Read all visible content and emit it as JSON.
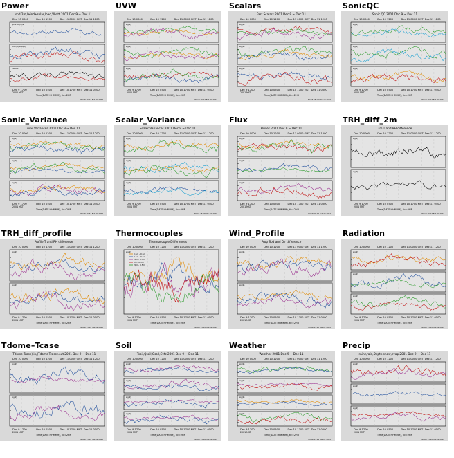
{
  "palette": {
    "background": "#d9d9d9",
    "plot": "#e4e4e4",
    "ink": "#000000",
    "series": [
      "#000000",
      "#1f4e9c",
      "#c01010",
      "#2a9a2a",
      "#e08a00",
      "#9b2f8f",
      "#1aa0d0",
      "#6b3a10"
    ]
  },
  "common": {
    "local_time": "2001 MST",
    "time_axis": "Time(DATE HHMMM), tic=2HR",
    "series_sig": "sig(2)"
  },
  "panels": [
    {
      "id": "power",
      "label": "Power",
      "title": "spd.2m,lwind+solar,load,Vbatt 2001 Dec 9 ~ Dec 11",
      "top_axis": [
        "Dec 10 0000",
        "Dec 10 1200",
        "Dec 11 0000 GMT",
        "Dec 11 1200"
      ],
      "bottom_axis": [
        "Dec 9 1700",
        "Dec 10 0500",
        "Dec 10 1700 MST",
        "Dec 11 0500"
      ],
      "strips": [
        {
          "colors": [
            "#1f4e9c"
          ],
          "note": "spd2.9m(m/s)"
        },
        {
          "colors": [
            "#1f4e9c",
            "#c01010"
          ],
          "note": "solar(2) load(2)"
        },
        {
          "colors": [
            "#000000",
            "#c01010"
          ],
          "note": "Vbatt(2)"
        }
      ],
      "footer_right": "NCAR 15:12 Feb 22 2002"
    },
    {
      "id": "uvw",
      "label": "UVW",
      "title": "",
      "top_axis": [
        "Dec 10 0000",
        "Dec 10 1200",
        "Dec 11 0000 GMT",
        "Dec 11 1200"
      ],
      "bottom_axis": [
        "Dec 9 1700",
        "Dec 10 0500",
        "Dec 10 1700 MST",
        "Dec 11 0500"
      ],
      "strips": [
        {
          "colors": [
            "#2a9a2a",
            "#e08a00",
            "#9b2f8f"
          ],
          "note": ""
        },
        {
          "colors": [
            "#2a9a2a",
            "#e08a00",
            "#9b2f8f"
          ],
          "note": ""
        },
        {
          "colors": [
            "#c01010",
            "#2a9a2a",
            "#1f4e9c"
          ],
          "note": ""
        }
      ],
      "footer_right": "NCAR 15:12 Feb 22 2002"
    },
    {
      "id": "scalars",
      "label": "Scalars",
      "title": "Fast Scalars 2001 Dec 9 ~ Dec 11",
      "top_axis": [
        "Dec 10 0000",
        "Dec 10 1200",
        "Dec 11 0000 GMT",
        "Dec 11 1200"
      ],
      "bottom_axis": [
        "Dec 9 1700",
        "Dec 10 0500",
        "Dec 10 1700 MST",
        "Dec 11 0500"
      ],
      "strips": [
        {
          "colors": [
            "#c01010",
            "#2a9a2a",
            "#9b2f8f"
          ],
          "note": ""
        },
        {
          "colors": [
            "#2a9a2a",
            "#e08a00",
            "#1f4e9c"
          ],
          "note": ""
        },
        {
          "colors": [
            "#1f4e9c",
            "#c01010"
          ],
          "note": ""
        }
      ],
      "footer_right": "NCAR 15:18 Mar 10 2002"
    },
    {
      "id": "sonicqc",
      "label": "SonicQC",
      "title": "Sonic QC 2001 Dec 9 ~ Dec 11",
      "top_axis": [
        "Dec 10 0000",
        "Dec 10 1200",
        "Dec 11 0000 GMT",
        "Dec 11 1200"
      ],
      "bottom_axis": [
        "Dec 9 1700",
        "Dec 10 0500",
        "Dec 10 1700 MST",
        "Dec 11 0500"
      ],
      "strips": [
        {
          "colors": [
            "#2a9a2a",
            "#1aa0d0"
          ],
          "note": ""
        },
        {
          "colors": [
            "#2a9a2a",
            "#1aa0d0"
          ],
          "note": ""
        },
        {
          "colors": [
            "#e08a00",
            "#c01010"
          ],
          "note": ""
        }
      ],
      "footer_right": "NCAR 15:12 Feb 22 2002"
    },
    {
      "id": "sonic_variance",
      "label": "Sonic_Variance",
      "title": "uvw Variances 2001 Dec 9 ~ Dec 11",
      "top_axis": [
        "Dec 10 0000",
        "Dec 10 1200",
        "Dec 11 0000 GMT",
        "Dec 11 1200"
      ],
      "bottom_axis": [
        "Dec 9 1700",
        "Dec 10 0500",
        "Dec 10 1700 MST",
        "Dec 11 0500"
      ],
      "strips": [
        {
          "colors": [
            "#e08a00",
            "#2a9a2a",
            "#1f4e9c"
          ],
          "note": ""
        },
        {
          "colors": [
            "#e08a00",
            "#2a9a2a",
            "#1f4e9c"
          ],
          "note": ""
        },
        {
          "colors": [
            "#e08a00",
            "#9b2f8f",
            "#1f4e9c"
          ],
          "note": ""
        }
      ],
      "footer_right": "NCAR 15:41 Feb 22 2002"
    },
    {
      "id": "scalar_variance",
      "label": "Scalar_Variance",
      "title": "Scaler Variances 2001 Dec 9 ~ Dec 11",
      "top_axis": [
        "Dec 10 0000",
        "Dec 10 1200",
        "Dec 11 0000 GMT",
        "Dec 11 1200"
      ],
      "bottom_axis": [
        "Dec 9 1700",
        "Dec 10 0500",
        "Dec 10 1700 MST",
        "Dec 11 0500"
      ],
      "strips": [
        {
          "colors": [
            "#e08a00",
            "#2a9a2a"
          ],
          "note": ""
        },
        {
          "colors": [
            "#1aa0d0",
            "#e08a00",
            "#2a9a2a"
          ],
          "note": ""
        },
        {
          "colors": [
            "#1f4e9c",
            "#1aa0d0"
          ],
          "note": ""
        }
      ],
      "footer_right": "NCAR 15:18 Mar 10 2002"
    },
    {
      "id": "flux",
      "label": "Flux",
      "title": "Fluxes 2001 Dec 9 ~ Dec 11",
      "top_axis": [
        "Dec 10 0000",
        "Dec 10 1200",
        "Dec 11 0000 GMT",
        "Dec 11 1200"
      ],
      "bottom_axis": [
        "Dec 9 1700",
        "Dec 10 0500",
        "Dec 10 1700 MST",
        "Dec 11 0500"
      ],
      "strips": [
        {
          "colors": [
            "#e08a00",
            "#2a9a2a",
            "#c01010"
          ],
          "note": ""
        },
        {
          "colors": [
            "#1f4e9c",
            "#2a9a2a"
          ],
          "note": ""
        },
        {
          "colors": [
            "#9b2f8f",
            "#c01010"
          ],
          "note": ""
        }
      ],
      "footer_right": "NCAR 15:12 Feb 22 2002"
    },
    {
      "id": "trh_diff_2m",
      "label": "TRH_diff_2m",
      "title": "2m T and RH difference",
      "top_axis": [
        "Dec 10 0000",
        "Dec 10 1200",
        "Dec 11 0000 GMT",
        "Dec 11 1200"
      ],
      "bottom_axis": [
        "Dec 9 1700",
        "Dec 10 0500",
        "Dec 10 1700 MST",
        "Dec 11 0500"
      ],
      "strips": [
        {
          "colors": [
            "#000000"
          ],
          "note": ""
        },
        {
          "colors": [
            "#000000"
          ],
          "note": ""
        }
      ],
      "footer_right": "NCAR 15:12 Feb 22 2002"
    },
    {
      "id": "trh_diff_profile",
      "label": "TRH_diff_profile",
      "title": "Profile T and RH difference",
      "top_axis": [
        "Dec 10 0000",
        "Dec 10 1200",
        "Dec 11 0000 GMT",
        "Dec 11 1200"
      ],
      "bottom_axis": [
        "Dec 9 1700",
        "Dec 10 0500",
        "Dec 10 1700 MST",
        "Dec 11 0500"
      ],
      "strips": [
        {
          "colors": [
            "#e08a00",
            "#1f4e9c",
            "#9b2f8f"
          ],
          "note": ""
        },
        {
          "colors": [
            "#e08a00",
            "#1f4e9c",
            "#9b2f8f"
          ],
          "note": ""
        }
      ],
      "footer_right": "NCAR 15:12 Feb 22 2002"
    },
    {
      "id": "thermocouples",
      "label": "Thermocouples",
      "title": "Thermocouple Differences",
      "top_axis": [
        "Dec 10 0000",
        "Dec 10 1200",
        "Dec 11 0000 GMT",
        "Dec 11 1200"
      ],
      "bottom_axis": [
        "Dec 9 1700",
        "Dec 10 0500",
        "Dec 10 1700 MST",
        "Dec 11 0500"
      ],
      "strips": [
        {
          "colors": [
            "#e08a00",
            "#1f4e9c",
            "#9b2f8f",
            "#c01010",
            "#2a9a2a"
          ],
          "note": ""
        }
      ],
      "legend": [
        "0.5m - 0.5m",
        "2.4m - 0.5m",
        "10m - 0.5m",
        "5m - 0.5m",
        "20m - 0.5m"
      ],
      "footer_right": "NCAR 15:12 Feb 22 2002"
    },
    {
      "id": "wind_profile",
      "label": "Wind_Profile",
      "title": "Prop Spd and Dir difference",
      "top_axis": [
        "Dec 10 0000",
        "Dec 10 1200",
        "Dec 11 0000 GMT",
        "Dec 11 1200"
      ],
      "bottom_axis": [
        "Dec 9 1700",
        "Dec 10 0500",
        "Dec 10 1700 MST",
        "Dec 11 0500"
      ],
      "strips": [
        {
          "colors": [
            "#e08a00",
            "#1f4e9c",
            "#9b2f8f"
          ],
          "note": ""
        },
        {
          "colors": [
            "#e08a00",
            "#1f4e9c",
            "#9b2f8f"
          ],
          "note": ""
        }
      ],
      "footer_right": "NCAR 15:12 Feb 22 2002"
    },
    {
      "id": "radiation",
      "label": "Radiation",
      "title": "",
      "top_axis": [
        "Dec 10 0000",
        "Dec 10 1200",
        "Dec 11 0000 GMT",
        "Dec 11 1200"
      ],
      "bottom_axis": [
        "Dec 9 1700",
        "Dec 10 0500",
        "Dec 10 1700 MST",
        "Dec 11 0500"
      ],
      "strips": [
        {
          "colors": [
            "#e08a00",
            "#c01010"
          ],
          "note": ""
        },
        {
          "colors": [
            "#1f4e9c",
            "#2a9a2a"
          ],
          "note": ""
        },
        {
          "colors": [
            "#2a9a2a",
            "#c01010"
          ],
          "note": ""
        }
      ],
      "footer_right": "NCAR 15:12 Feb 22 2002"
    },
    {
      "id": "tdome_tcase",
      "label": "Tdome–Tcase",
      "title": "(Tdome-Tcase).in,(Tdome-Tcase).out 2001 Dec 9 ~ Dec 11",
      "top_axis": [
        "Dec 10 0000",
        "Dec 10 1200",
        "Dec 11 0000 GMT",
        "Dec 11 1200"
      ],
      "bottom_axis": [
        "Dec 9 1700",
        "Dec 10 0500",
        "Dec 10 1700 MST",
        "Dec 11 0500"
      ],
      "strips": [
        {
          "colors": [
            "#1f4e9c",
            "#9b2f8f"
          ],
          "note": ""
        },
        {
          "colors": [
            "#1f4e9c",
            "#9b2f8f"
          ],
          "note": ""
        }
      ],
      "footer_right": "NCAR 15:12 Feb 22 2002"
    },
    {
      "id": "soil",
      "label": "Soil",
      "title": "Tsoil,Qsoil,Gsoil,Cvfc 2001 Dec 9 ~ Dec 11",
      "top_axis": [
        "Dec 10 0000",
        "Dec 10 1200",
        "Dec 11 0000 GMT",
        "Dec 11 1200"
      ],
      "bottom_axis": [
        "Dec 9 1700",
        "Dec 10 0500",
        "Dec 10 1700 MST",
        "Dec 11 0500"
      ],
      "strips": [
        {
          "colors": [
            "#9b2f8f",
            "#1f4e9c"
          ],
          "note": ""
        },
        {
          "colors": [
            "#9b2f8f",
            "#1f4e9c"
          ],
          "note": ""
        },
        {
          "colors": [
            "#9b2f8f",
            "#1f4e9c"
          ],
          "note": ""
        },
        {
          "colors": [
            "#9b2f8f",
            "#1f4e9c"
          ],
          "note": ""
        }
      ],
      "footer_right": "NCAR 15:16 Feb 22 2002"
    },
    {
      "id": "weather",
      "label": "Weather",
      "title": "Weather 2001 Dec 9 ~ Dec 11",
      "top_axis": [
        "Dec 10 0000",
        "Dec 10 1200",
        "Dec 11 0000 GMT",
        "Dec 11 1200"
      ],
      "bottom_axis": [
        "Dec 9 1700",
        "Dec 10 0500",
        "Dec 10 1700 MST",
        "Dec 11 0500"
      ],
      "strips": [
        {
          "colors": [
            "#2a9a2a",
            "#1f4e9c"
          ],
          "note": ""
        },
        {
          "colors": [
            "#9b2f8f",
            "#c01010"
          ],
          "note": ""
        },
        {
          "colors": [
            "#e08a00",
            "#1f4e9c"
          ],
          "note": ""
        },
        {
          "colors": [
            "#2a9a2a",
            "#c01010"
          ],
          "note": ""
        }
      ],
      "footer_right": "NCAR 15:14 Feb 22 2002"
    },
    {
      "id": "precip",
      "label": "Precip",
      "title": "rainz,rain,Depth.snow,evap 2001 Dec 9 ~ Dec 11",
      "top_axis": [
        "Dec 10 0000",
        "Dec 10 1200",
        "Dec 11 0000 GMT",
        "Dec 11 1200"
      ],
      "bottom_axis": [
        "Dec 9 1700",
        "Dec 10 0500",
        "Dec 10 1700 MST",
        "Dec 11 0500"
      ],
      "strips": [
        {
          "colors": [
            "#c01010",
            "#9b2f8f"
          ],
          "note": ""
        },
        {
          "colors": [
            "#1f4e9c"
          ],
          "note": ""
        },
        {
          "colors": [
            "#c01010",
            "#9b2f8f"
          ],
          "note": ""
        }
      ],
      "footer_right": "NCAR 15:42 Feb 22 2002"
    }
  ]
}
